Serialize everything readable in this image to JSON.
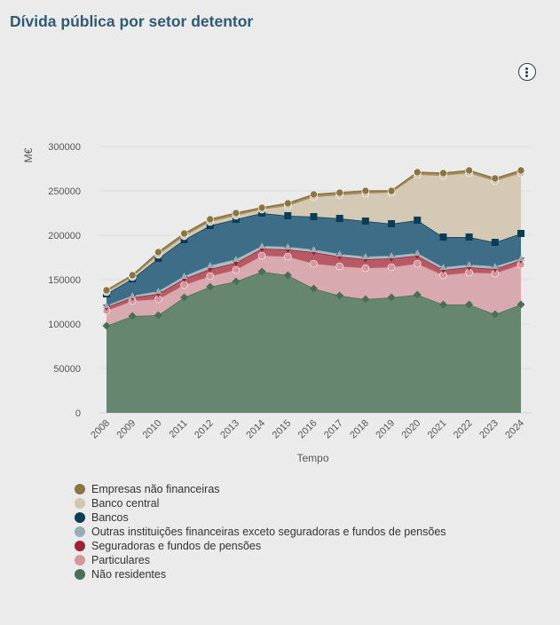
{
  "header": {
    "title": "Dívida pública por setor detentor",
    "menu_icon": "more-vertical-icon"
  },
  "chart_data": {
    "type": "area",
    "stacked": true,
    "title": "Dívida pública por setor detentor",
    "xlabel": "Tempo",
    "ylabel": "M€",
    "x": [
      "2008",
      "2009",
      "2010",
      "2011",
      "2012",
      "2013",
      "2014",
      "2015",
      "2016",
      "2017",
      "2018",
      "2019",
      "2020",
      "2021",
      "2022",
      "2023",
      "2024"
    ],
    "ylim": [
      0,
      300000
    ],
    "yticks": [
      0,
      50000,
      100000,
      150000,
      200000,
      250000,
      300000
    ],
    "yticks_labels": [
      "0",
      "50000",
      "100000",
      "150000",
      "200000",
      "250000",
      "300000"
    ],
    "grid": true,
    "legend_position": "bottom-left",
    "stack_totals": {
      "Não residentes": [
        98000,
        109000,
        110000,
        130000,
        142000,
        148000,
        159000,
        155000,
        140000,
        132000,
        128000,
        130000,
        133000,
        122000,
        122000,
        111000,
        122000
      ],
      "Particulares": [
        115000,
        126000,
        128000,
        144000,
        154000,
        161000,
        177000,
        176000,
        168000,
        165000,
        163000,
        164000,
        168000,
        155000,
        158000,
        157000,
        167000
      ],
      "Seguradoras e fundos de pensões": [
        119000,
        130000,
        134000,
        151000,
        162000,
        169000,
        185000,
        184000,
        181000,
        176000,
        173000,
        174000,
        177000,
        161000,
        164000,
        162000,
        172000
      ],
      "Outras instituições financeiras exceto seguradoras e fundos de pensões": [
        121000,
        132000,
        137000,
        154000,
        166000,
        173000,
        188000,
        187000,
        184000,
        179000,
        176000,
        177000,
        180000,
        164000,
        167000,
        165000,
        174000
      ],
      "Bancos": [
        134000,
        151000,
        174000,
        195000,
        211000,
        218000,
        225000,
        222000,
        221000,
        219000,
        216000,
        213000,
        217000,
        198000,
        198000,
        192000,
        202000
      ],
      "Banco central": [
        136000,
        153000,
        178000,
        199000,
        215000,
        222000,
        229000,
        233000,
        243000,
        245000,
        247000,
        248000,
        268000,
        267000,
        270000,
        261000,
        270000
      ],
      "Empresas não financeiras": [
        138000,
        155000,
        181000,
        202000,
        218000,
        225000,
        231000,
        236000,
        246000,
        248000,
        250000,
        250000,
        271000,
        270000,
        273000,
        264000,
        273000
      ]
    },
    "series": [
      {
        "name": "Empresas não financeiras",
        "values": [
          2000,
          2000,
          3000,
          3000,
          3000,
          3000,
          2000,
          3000,
          3000,
          3000,
          3000,
          2000,
          3000,
          3000,
          3000,
          3000,
          3000
        ]
      },
      {
        "name": "Banco central",
        "values": [
          2000,
          2000,
          4000,
          4000,
          4000,
          4000,
          4000,
          11000,
          22000,
          26000,
          31000,
          35000,
          51000,
          69000,
          72000,
          69000,
          68000
        ]
      },
      {
        "name": "Bancos",
        "values": [
          13000,
          19000,
          37000,
          41000,
          45000,
          45000,
          37000,
          35000,
          37000,
          40000,
          40000,
          36000,
          37000,
          34000,
          31000,
          27000,
          28000
        ]
      },
      {
        "name": "Outras instituições financeiras exceto seguradoras e fundos de pensões",
        "values": [
          2000,
          2000,
          3000,
          3000,
          4000,
          4000,
          3000,
          3000,
          3000,
          3000,
          3000,
          3000,
          3000,
          3000,
          3000,
          3000,
          2000
        ]
      },
      {
        "name": "Seguradoras e fundos de pensões",
        "values": [
          4000,
          4000,
          6000,
          7000,
          8000,
          8000,
          8000,
          8000,
          13000,
          11000,
          10000,
          10000,
          9000,
          6000,
          6000,
          5000,
          5000
        ]
      },
      {
        "name": "Particulares",
        "values": [
          17000,
          17000,
          18000,
          14000,
          12000,
          13000,
          18000,
          21000,
          28000,
          33000,
          35000,
          34000,
          35000,
          33000,
          36000,
          46000,
          45000
        ]
      },
      {
        "name": "Não residentes",
        "values": [
          98000,
          109000,
          110000,
          130000,
          142000,
          148000,
          159000,
          155000,
          140000,
          132000,
          128000,
          130000,
          133000,
          122000,
          122000,
          111000,
          122000
        ]
      }
    ]
  },
  "legend": {
    "items": [
      {
        "label": "Empresas não financeiras",
        "color": "#8a7442"
      },
      {
        "label": "Banco central",
        "color": "#cfc5b0"
      },
      {
        "label": "Bancos",
        "color": "#0d3d56"
      },
      {
        "label": "Outras instituições financeiras exceto seguradoras e fundos de pensões",
        "color": "#93afb5"
      },
      {
        "label": "Seguradoras e fundos de pensões",
        "color": "#9b2335"
      },
      {
        "label": "Particulares",
        "color": "#d6969e"
      },
      {
        "label": "Não residentes",
        "color": "#4b6e55"
      }
    ]
  },
  "style": {
    "series_colors": {
      "Não residentes": {
        "fill": "#668670",
        "line": "#4b6e55",
        "marker": "diamond"
      },
      "Particulares": {
        "fill": "#d9a9b0",
        "line": "#d6969e",
        "marker": "circle"
      },
      "Seguradoras e fundos de pensões": {
        "fill": "#b85a66",
        "line": "#9b2335",
        "marker": "triangle-down"
      },
      "Outras instituições financeiras exceto seguradoras e fundos de pensões": {
        "fill": "#a8bfc4",
        "line": "#93afb5",
        "marker": "triangle"
      },
      "Bancos": {
        "fill": "#3d6d87",
        "line": "#0d3d56",
        "marker": "square"
      },
      "Banco central": {
        "fill": "#d4c9b4",
        "line": "#cfc5b0",
        "marker": "circle"
      },
      "Empresas não financeiras": {
        "fill": "#a48d5b",
        "line": "#8a7442",
        "marker": "circle"
      }
    }
  }
}
